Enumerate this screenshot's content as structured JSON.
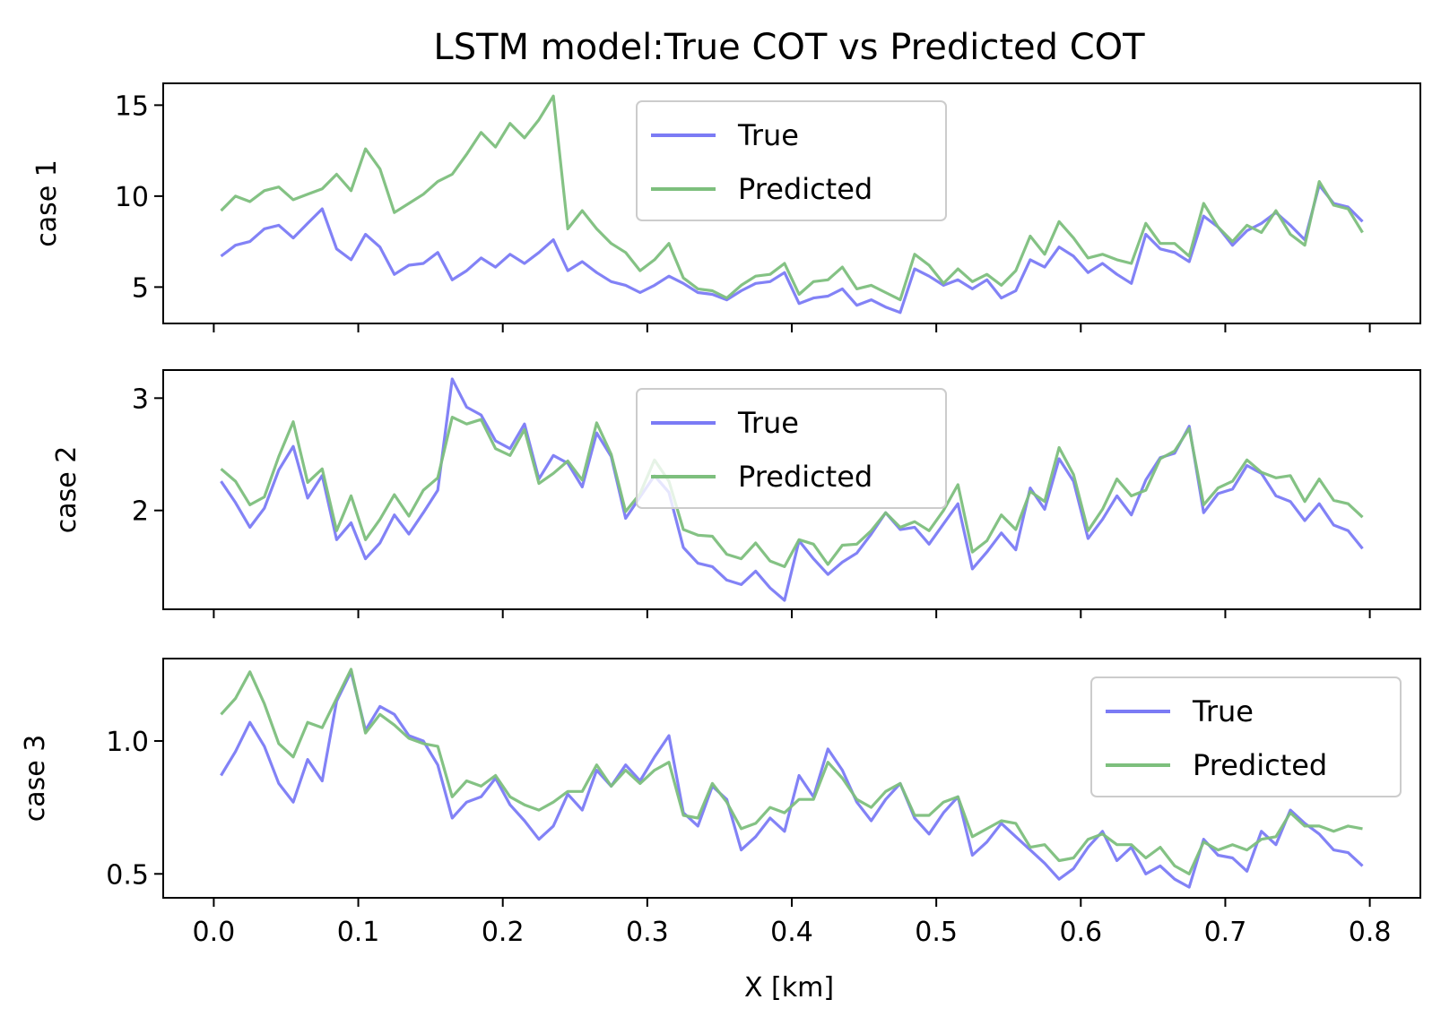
{
  "chart_data": {
    "type": "line",
    "title": "LSTM model:True COT vs Predicted COT",
    "xlabel": "X [km]",
    "x_ticks": [
      "0.0",
      "0.1",
      "0.2",
      "0.3",
      "0.4",
      "0.5",
      "0.6",
      "0.7",
      "0.8"
    ],
    "xlim": [
      -0.035,
      0.835
    ],
    "x": [
      0.005,
      0.015,
      0.025,
      0.035,
      0.045,
      0.055,
      0.065,
      0.075,
      0.085,
      0.095,
      0.105,
      0.115,
      0.125,
      0.135,
      0.145,
      0.155,
      0.165,
      0.175,
      0.185,
      0.195,
      0.205,
      0.215,
      0.225,
      0.235,
      0.245,
      0.255,
      0.265,
      0.275,
      0.285,
      0.295,
      0.305,
      0.315,
      0.325,
      0.335,
      0.345,
      0.355,
      0.365,
      0.375,
      0.385,
      0.395,
      0.405,
      0.415,
      0.425,
      0.435,
      0.445,
      0.455,
      0.465,
      0.475,
      0.485,
      0.495,
      0.505,
      0.515,
      0.525,
      0.535,
      0.545,
      0.555,
      0.565,
      0.575,
      0.585,
      0.595,
      0.605,
      0.615,
      0.625,
      0.635,
      0.645,
      0.655,
      0.665,
      0.675,
      0.685,
      0.695,
      0.705,
      0.715,
      0.725,
      0.735,
      0.745,
      0.755,
      0.765,
      0.775,
      0.785,
      0.795
    ],
    "colors": {
      "True": "#7b7bf5",
      "Predicted": "#7dbf7d"
    },
    "subplots": [
      {
        "ylabel": "case 1",
        "ylim": [
          3.0,
          16.2
        ],
        "y_ticks": [
          5,
          10,
          15
        ],
        "y_tick_labels": [
          "5",
          "10",
          "15"
        ],
        "legend_position": "upper center",
        "series": [
          {
            "name": "True",
            "values": [
              6.7,
              7.3,
              7.5,
              8.2,
              8.4,
              7.7,
              8.5,
              9.3,
              7.1,
              6.5,
              7.9,
              7.2,
              5.7,
              6.2,
              6.3,
              6.9,
              5.4,
              5.9,
              6.6,
              6.1,
              6.8,
              6.3,
              6.9,
              7.6,
              5.9,
              6.4,
              5.8,
              5.3,
              5.1,
              4.7,
              5.1,
              5.6,
              5.2,
              4.7,
              4.6,
              4.3,
              4.8,
              5.2,
              5.3,
              5.8,
              4.1,
              4.4,
              4.5,
              4.9,
              4.0,
              4.3,
              3.9,
              3.6,
              6.0,
              5.6,
              5.1,
              5.4,
              4.9,
              5.4,
              4.4,
              4.8,
              6.5,
              6.1,
              7.2,
              6.7,
              5.8,
              6.3,
              5.7,
              5.2,
              7.9,
              7.1,
              6.9,
              6.4,
              8.9,
              8.3,
              7.3,
              8.1,
              8.5,
              9.1,
              8.4,
              7.6,
              10.6,
              9.6,
              9.4,
              8.6
            ]
          },
          {
            "name": "Predicted",
            "values": [
              9.2,
              10.0,
              9.7,
              10.3,
              10.5,
              9.8,
              10.1,
              10.4,
              11.2,
              10.3,
              12.6,
              11.5,
              9.1,
              9.6,
              10.1,
              10.8,
              11.2,
              12.3,
              13.5,
              12.7,
              14.0,
              13.2,
              14.2,
              15.5,
              8.2,
              9.2,
              8.2,
              7.4,
              6.9,
              5.9,
              6.5,
              7.4,
              5.5,
              4.9,
              4.8,
              4.4,
              5.1,
              5.6,
              5.7,
              6.3,
              4.6,
              5.3,
              5.4,
              6.1,
              4.9,
              5.1,
              4.7,
              4.3,
              6.8,
              6.2,
              5.2,
              6.0,
              5.3,
              5.7,
              5.1,
              5.9,
              7.8,
              6.8,
              8.6,
              7.7,
              6.6,
              6.8,
              6.5,
              6.3,
              8.5,
              7.4,
              7.4,
              6.7,
              9.6,
              8.3,
              7.5,
              8.4,
              8.0,
              9.2,
              7.9,
              7.3,
              10.8,
              9.5,
              9.3,
              8.0
            ]
          }
        ]
      },
      {
        "ylabel": "case 2",
        "ylim": [
          1.12,
          3.25
        ],
        "y_ticks": [
          2,
          3
        ],
        "y_tick_labels": [
          "2",
          "3"
        ],
        "legend_position": "upper center",
        "series": [
          {
            "name": "True",
            "values": [
              2.26,
              2.07,
              1.85,
              2.02,
              2.36,
              2.57,
              2.11,
              2.31,
              1.74,
              1.89,
              1.57,
              1.71,
              1.96,
              1.79,
              1.98,
              2.18,
              3.17,
              2.92,
              2.85,
              2.62,
              2.55,
              2.77,
              2.28,
              2.49,
              2.42,
              2.21,
              2.69,
              2.48,
              1.93,
              2.12,
              2.31,
              2.16,
              1.67,
              1.53,
              1.5,
              1.38,
              1.34,
              1.46,
              1.31,
              1.2,
              1.73,
              1.57,
              1.43,
              1.54,
              1.62,
              1.79,
              1.98,
              1.83,
              1.85,
              1.7,
              1.88,
              2.06,
              1.48,
              1.63,
              1.8,
              1.65,
              2.2,
              2.01,
              2.46,
              2.26,
              1.75,
              1.92,
              2.13,
              1.96,
              2.27,
              2.47,
              2.51,
              2.75,
              1.98,
              2.15,
              2.19,
              2.4,
              2.33,
              2.13,
              2.08,
              1.91,
              2.06,
              1.87,
              1.82,
              1.66
            ]
          },
          {
            "name": "Predicted",
            "values": [
              2.37,
              2.26,
              2.05,
              2.12,
              2.48,
              2.79,
              2.25,
              2.37,
              1.82,
              2.13,
              1.74,
              1.92,
              2.14,
              1.95,
              2.18,
              2.29,
              2.83,
              2.77,
              2.81,
              2.55,
              2.49,
              2.72,
              2.24,
              2.33,
              2.44,
              2.27,
              2.78,
              2.5,
              1.99,
              2.15,
              2.45,
              2.26,
              1.83,
              1.78,
              1.77,
              1.61,
              1.57,
              1.71,
              1.55,
              1.5,
              1.74,
              1.7,
              1.52,
              1.69,
              1.7,
              1.82,
              1.98,
              1.85,
              1.9,
              1.82,
              2.0,
              2.23,
              1.63,
              1.73,
              1.96,
              1.83,
              2.17,
              2.08,
              2.56,
              2.32,
              1.82,
              2.01,
              2.28,
              2.13,
              2.18,
              2.46,
              2.53,
              2.73,
              2.05,
              2.2,
              2.26,
              2.45,
              2.34,
              2.29,
              2.31,
              2.08,
              2.28,
              2.09,
              2.06,
              1.94
            ]
          }
        ]
      },
      {
        "ylabel": "case 3",
        "ylim": [
          0.41,
          1.31
        ],
        "y_ticks": [
          0.5,
          1.0
        ],
        "y_tick_labels": [
          "0.5",
          "1.0"
        ],
        "legend_position": "upper right",
        "series": [
          {
            "name": "True",
            "values": [
              0.87,
              0.96,
              1.07,
              0.98,
              0.84,
              0.77,
              0.93,
              0.85,
              1.15,
              1.26,
              1.04,
              1.13,
              1.1,
              1.02,
              1.0,
              0.91,
              0.71,
              0.77,
              0.79,
              0.86,
              0.76,
              0.7,
              0.63,
              0.68,
              0.8,
              0.74,
              0.89,
              0.83,
              0.91,
              0.85,
              0.94,
              1.02,
              0.73,
              0.68,
              0.83,
              0.78,
              0.59,
              0.64,
              0.71,
              0.66,
              0.87,
              0.79,
              0.97,
              0.89,
              0.77,
              0.7,
              0.78,
              0.84,
              0.71,
              0.65,
              0.73,
              0.79,
              0.57,
              0.62,
              0.69,
              0.64,
              0.59,
              0.54,
              0.48,
              0.52,
              0.6,
              0.66,
              0.55,
              0.6,
              0.5,
              0.53,
              0.48,
              0.45,
              0.63,
              0.57,
              0.56,
              0.51,
              0.66,
              0.61,
              0.74,
              0.69,
              0.65,
              0.59,
              0.58,
              0.53
            ]
          },
          {
            "name": "Predicted",
            "values": [
              1.1,
              1.16,
              1.26,
              1.14,
              0.99,
              0.94,
              1.07,
              1.05,
              1.16,
              1.27,
              1.03,
              1.1,
              1.06,
              1.01,
              0.99,
              0.98,
              0.79,
              0.85,
              0.83,
              0.87,
              0.79,
              0.76,
              0.74,
              0.77,
              0.81,
              0.81,
              0.91,
              0.83,
              0.89,
              0.84,
              0.89,
              0.92,
              0.72,
              0.71,
              0.84,
              0.77,
              0.67,
              0.69,
              0.75,
              0.73,
              0.78,
              0.78,
              0.92,
              0.86,
              0.78,
              0.75,
              0.81,
              0.84,
              0.72,
              0.72,
              0.77,
              0.79,
              0.64,
              0.67,
              0.7,
              0.69,
              0.6,
              0.61,
              0.55,
              0.56,
              0.63,
              0.65,
              0.61,
              0.61,
              0.56,
              0.6,
              0.53,
              0.5,
              0.62,
              0.59,
              0.61,
              0.59,
              0.63,
              0.64,
              0.73,
              0.68,
              0.68,
              0.66,
              0.68,
              0.67
            ]
          }
        ]
      }
    ]
  }
}
